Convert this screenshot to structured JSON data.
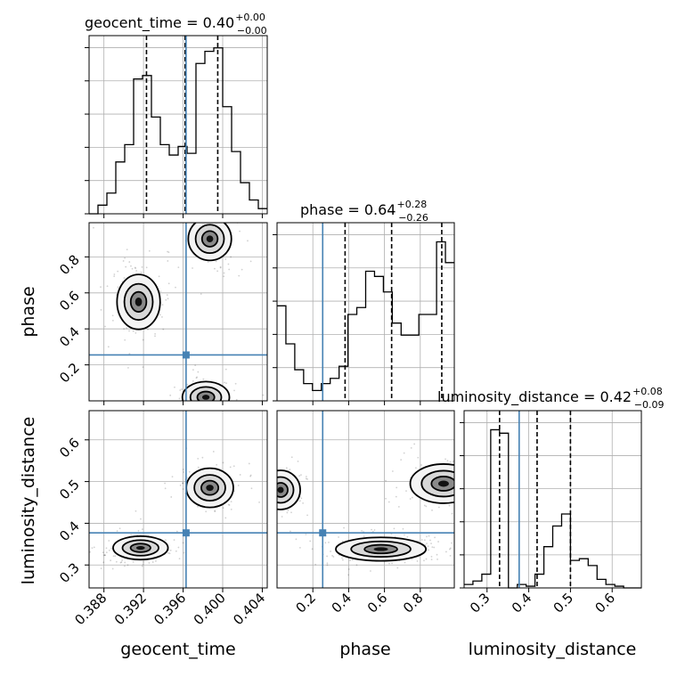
{
  "chart_data": {
    "type": "corner",
    "parameters": [
      "geocent_time",
      "phase",
      "luminosity_distance"
    ],
    "truths": {
      "geocent_time": 0.3963,
      "phase": 0.255,
      "luminosity_distance": 0.377
    },
    "truth_color": "#4682b4",
    "titles": [
      {
        "param": "geocent_time",
        "text": "geocent_time = 0.40",
        "sup": "+0.00",
        "sub": "−0.00"
      },
      {
        "param": "phase",
        "text": "phase = 0.64",
        "sup": "+0.28",
        "sub": "−0.26"
      },
      {
        "param": "luminosity_distance",
        "text": "luminosity_distance = 0.42",
        "sup": "+0.08",
        "sub": "−0.09"
      }
    ],
    "axis_labels": {
      "geocent_time": "geocent_time",
      "phase": "phase",
      "luminosity_distance": "luminosity_distance"
    },
    "ranges": {
      "geocent_time": [
        0.3865,
        0.4045
      ],
      "phase": [
        0.0,
        0.99
      ],
      "luminosity_distance": [
        0.245,
        0.67
      ]
    },
    "tick_labels": {
      "geocent_time": [
        "0.388",
        "0.392",
        "0.396",
        "0.400",
        "0.404"
      ],
      "phase": [
        "0.2",
        "0.4",
        "0.6",
        "0.8"
      ],
      "luminosity_distance_y": [
        "0.3",
        "0.4",
        "0.5",
        "0.6"
      ],
      "luminosity_distance_x": [
        "0.3",
        "0.4",
        "0.5",
        "0.6"
      ]
    },
    "quantiles": {
      "geocent_time": [
        0.3923,
        0.3962,
        0.3995
      ],
      "phase": [
        0.38,
        0.64,
        0.92
      ],
      "luminosity_distance": [
        0.33,
        0.42,
        0.5
      ]
    },
    "histograms": {
      "geocent_time": {
        "edges": [
          0.3865,
          0.3874,
          0.3883,
          0.3892,
          0.3901,
          0.391,
          0.3919,
          0.3928,
          0.3937,
          0.3946,
          0.3955,
          0.3964,
          0.3973,
          0.3982,
          0.3991,
          0.4,
          0.4009,
          0.4018,
          0.4027,
          0.4036,
          0.4045
        ],
        "counts": [
          0.0,
          0.05,
          0.12,
          0.3,
          0.4,
          0.78,
          0.8,
          0.56,
          0.4,
          0.34,
          0.39,
          0.35,
          0.87,
          0.94,
          0.96,
          0.62,
          0.36,
          0.18,
          0.08,
          0.03
        ]
      },
      "phase": {
        "edges": [
          0.0,
          0.0495,
          0.099,
          0.1485,
          0.198,
          0.2475,
          0.297,
          0.3465,
          0.396,
          0.4455,
          0.495,
          0.5445,
          0.594,
          0.6435,
          0.693,
          0.7425,
          0.792,
          0.8415,
          0.891,
          0.9405,
          0.99
        ],
        "counts": [
          0.55,
          0.33,
          0.18,
          0.1,
          0.06,
          0.1,
          0.13,
          0.2,
          0.5,
          0.54,
          0.75,
          0.72,
          0.63,
          0.45,
          0.38,
          0.38,
          0.5,
          0.5,
          0.92,
          0.8
        ]
      },
      "luminosity_distance": {
        "edges": [
          0.245,
          0.2662,
          0.2875,
          0.3088,
          0.33,
          0.3513,
          0.3725,
          0.3938,
          0.415,
          0.4363,
          0.4575,
          0.4788,
          0.5,
          0.5213,
          0.5425,
          0.5638,
          0.585,
          0.6063,
          0.6275,
          0.6488,
          0.67
        ],
        "counts": [
          0.02,
          0.04,
          0.08,
          0.92,
          0.9,
          0.0,
          0.02,
          0.01,
          0.08,
          0.24,
          0.36,
          0.43,
          0.16,
          0.17,
          0.13,
          0.05,
          0.02,
          0.01,
          0.0,
          0.0
        ]
      }
    },
    "pair_peaks": [
      {
        "x": "geocent_time",
        "y": "phase",
        "peaks": [
          [
            0.3987,
            0.9
          ],
          [
            0.3915,
            0.55
          ],
          [
            0.3983,
            0.02
          ]
        ]
      },
      {
        "x": "geocent_time",
        "y": "luminosity_distance",
        "peaks": [
          [
            0.3917,
            0.341
          ],
          [
            0.3987,
            0.485
          ]
        ]
      },
      {
        "x": "phase",
        "y": "luminosity_distance",
        "peaks": [
          [
            0.58,
            0.338
          ],
          [
            0.93,
            0.495
          ],
          [
            0.02,
            0.48
          ]
        ]
      }
    ]
  }
}
